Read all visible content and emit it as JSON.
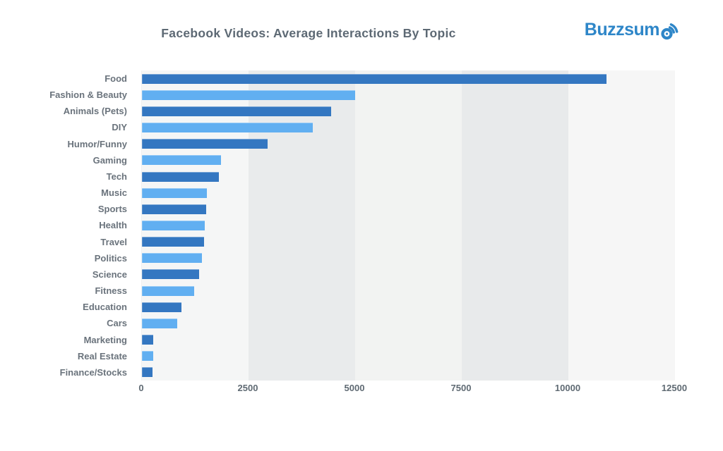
{
  "header": {
    "title": "Facebook Videos: Average Interactions By Topic",
    "logo_text": "Buzzsumo"
  },
  "colors": {
    "logo_blue": "#2e86c8",
    "title_text": "#5d6974",
    "label_text": "#6a737c",
    "tick_text": "#5f6a73",
    "bar_dark": "#3477c1",
    "bar_light": "#61aff1",
    "band_colors": [
      "#f5f6f6",
      "#e9ebec",
      "#f2f3f2",
      "#e8eaeb",
      "#f6f6f6"
    ]
  },
  "chart_data": {
    "type": "bar",
    "orientation": "horizontal",
    "title": "Facebook Videos: Average Interactions By Topic",
    "categories": [
      "Food",
      "Fashion & Beauty",
      "Animals (Pets)",
      "DIY",
      "Humor/Funny",
      "Gaming",
      "Tech",
      "Music",
      "Sports",
      "Health",
      "Travel",
      "Politics",
      "Science",
      "Fitness",
      "Education",
      "Cars",
      "Marketing",
      "Real Estate",
      "Finance/Stocks"
    ],
    "values": [
      10900,
      5000,
      4430,
      4000,
      2950,
      1860,
      1800,
      1530,
      1500,
      1480,
      1450,
      1400,
      1340,
      1230,
      930,
      830,
      270,
      260,
      250
    ],
    "xlabel": "",
    "ylabel": "",
    "xlim": [
      0,
      12500
    ],
    "x_ticks": [
      0,
      2500,
      5000,
      7500,
      10000,
      12500
    ],
    "legend": "none",
    "grid": "alternating-vertical-bands",
    "bar_color_pattern": "rows alternate dark blue / light blue starting dark"
  }
}
